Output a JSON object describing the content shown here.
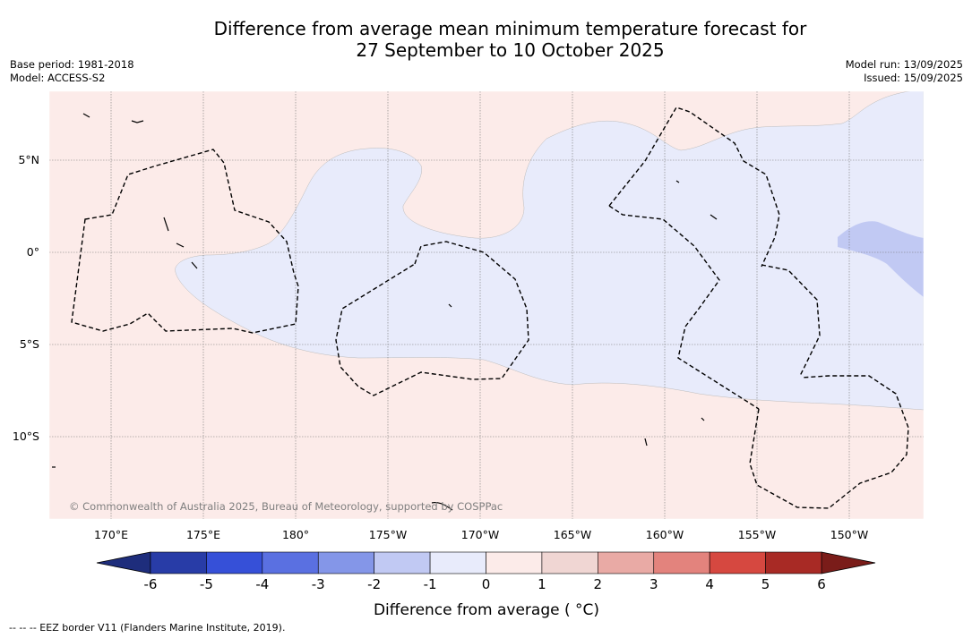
{
  "title_line1": "Difference from average mean minimum temperature forecast for",
  "title_line2": "27 September to 10 October 2025",
  "meta": {
    "base_period": "Base period: 1981-2018",
    "model": "Model: ACCESS-S2",
    "model_run": "Model run: 13/09/2025",
    "issued": "Issued: 15/09/2025"
  },
  "map": {
    "lat_labels": [
      "5°N",
      "0°",
      "5°S",
      "10°S"
    ],
    "lon_labels": [
      "170°E",
      "175°E",
      "180°",
      "175°W",
      "170°W",
      "165°W",
      "160°W",
      "155°W",
      "150°W"
    ],
    "copyright": "© Commonwealth of Australia 2025, Bureau of Meteorology, supported by COSPPac",
    "colors": {
      "slightly_warm": "#fcebe9",
      "slightly_cool": "#e8ebfb",
      "cool": "#c1c9f3",
      "ocean_border": "#000000"
    }
  },
  "colorbar": {
    "ticks": [
      "-6",
      "-5",
      "-4",
      "-3",
      "-2",
      "-1",
      "0",
      "1",
      "2",
      "3",
      "4",
      "5",
      "6"
    ],
    "label": "Difference from average ( °C)",
    "under_color": "#1e2d7c",
    "over_color": "#7a1c19",
    "colors": [
      "#283ca7",
      "#3650d8",
      "#5a70e1",
      "#8496e8",
      "#c1c9f3",
      "#e8ebfb",
      "#fcebe9",
      "#f0d6d3",
      "#e9aaa5",
      "#e3837d",
      "#d64840",
      "#a82a25"
    ]
  },
  "legend_note": "--  --  -- EEZ border V11 (Flanders Marine Institute, 2019)."
}
